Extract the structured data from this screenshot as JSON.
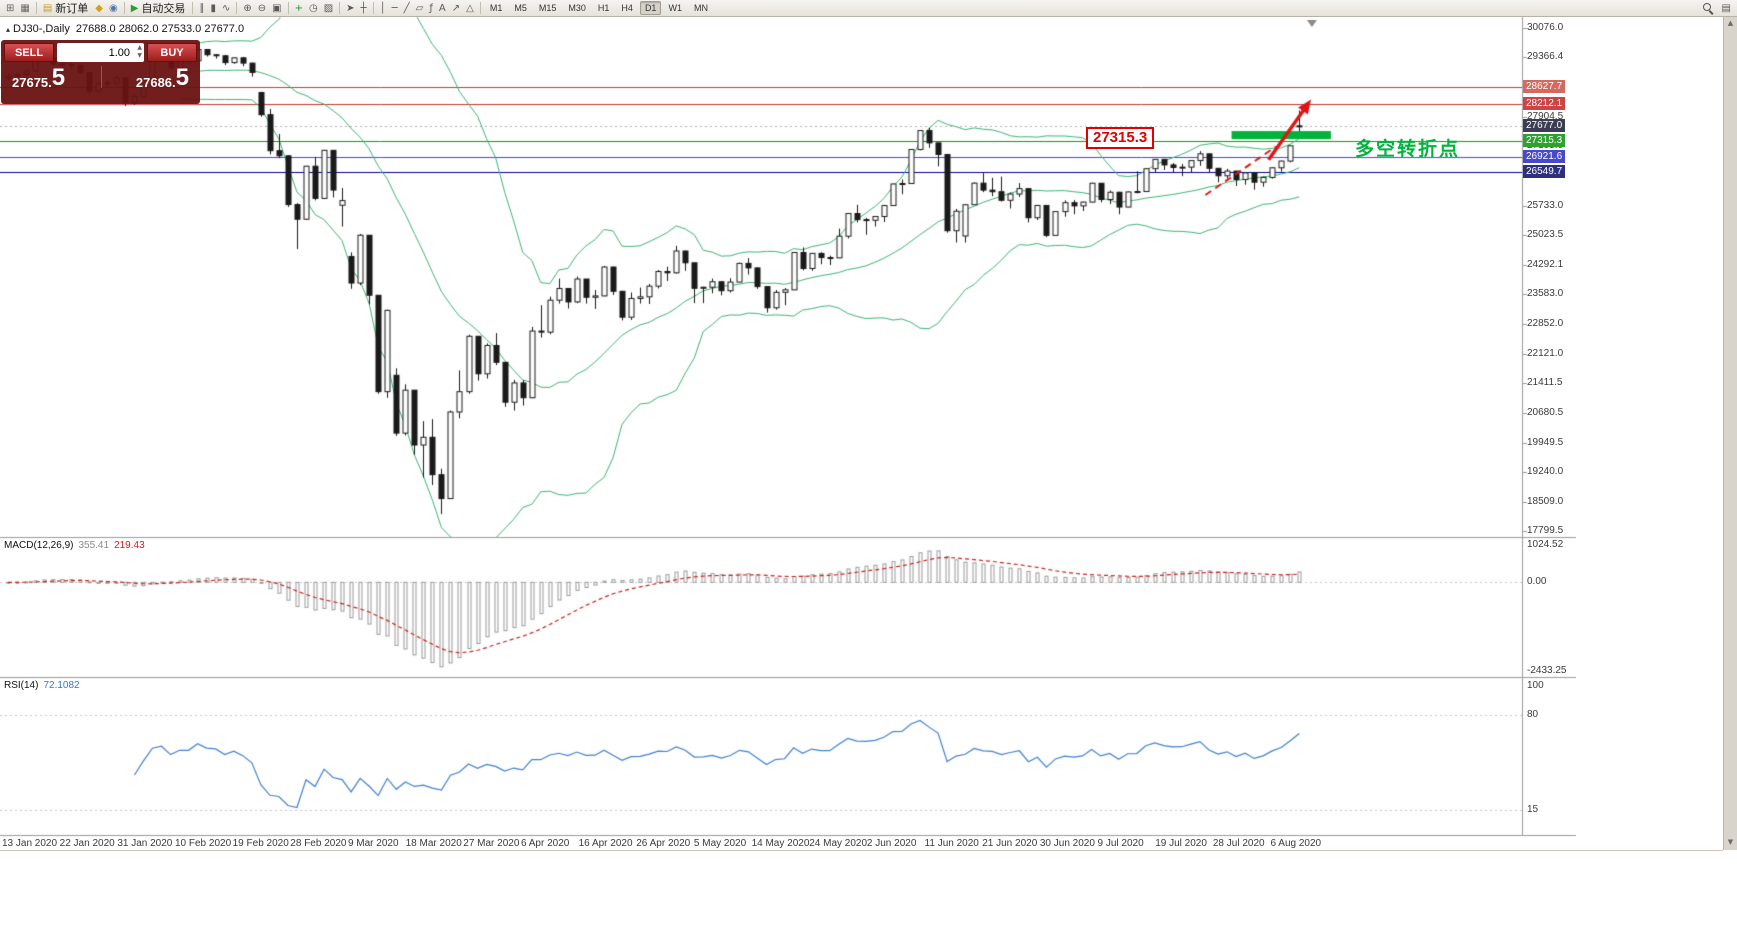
{
  "toolbar": {
    "items": [
      {
        "name": "new-chart-icon",
        "glyph": "⊞",
        "color": "#666666"
      },
      {
        "name": "profiles-icon",
        "glyph": "▦",
        "color": "#666666"
      },
      {
        "name": "sep"
      },
      {
        "name": "new-order-button",
        "glyph": "▤",
        "color": "#c89a2a",
        "label": "新订单"
      },
      {
        "name": "market-watch-icon",
        "glyph": "◆",
        "color": "#d4a017"
      },
      {
        "name": "navigator-icon",
        "glyph": "◉",
        "color": "#5577aa"
      },
      {
        "name": "sep"
      },
      {
        "name": "auto-trading-button",
        "glyph": "▶",
        "color": "#2e9e2e",
        "label": "自动交易"
      },
      {
        "name": "sep"
      },
      {
        "name": "bars-chart-icon",
        "glyph": "∥"
      },
      {
        "name": "candles-chart-icon",
        "glyph": "▮"
      },
      {
        "name": "line-chart-icon",
        "glyph": "∿"
      },
      {
        "name": "sep"
      },
      {
        "name": "zoom-in-icon",
        "glyph": "⊕"
      },
      {
        "name": "zoom-out-icon",
        "glyph": "⊖"
      },
      {
        "name": "tile-windows-icon",
        "glyph": "▣"
      },
      {
        "name": "sep"
      },
      {
        "name": "indicators-icon",
        "glyph": "+",
        "color": "#1e9e1e"
      },
      {
        "name": "period-icon",
        "glyph": "◷"
      },
      {
        "name": "templates-icon",
        "glyph": "▨"
      },
      {
        "name": "sep"
      },
      {
        "name": "cursor-icon",
        "glyph": "➤"
      },
      {
        "name": "crosshair-icon",
        "glyph": "┼"
      },
      {
        "name": "sep"
      },
      {
        "name": "vertical-line-icon",
        "glyph": "│"
      },
      {
        "name": "horizontal-line-icon",
        "glyph": "─"
      },
      {
        "name": "trendline-icon",
        "glyph": "╱"
      },
      {
        "name": "channel-icon",
        "glyph": "▱"
      },
      {
        "name": "fibonacci-icon",
        "glyph": "ƒ"
      },
      {
        "name": "text-icon",
        "glyph": "A"
      },
      {
        "name": "arrows-icon",
        "glyph": "↗"
      },
      {
        "name": "shapes-icon",
        "glyph": "△"
      },
      {
        "name": "sep"
      }
    ],
    "timeframes": [
      "M1",
      "M5",
      "M15",
      "M30",
      "H1",
      "H4",
      "D1",
      "W1",
      "MN"
    ],
    "active_timeframe": "D1",
    "items_right": [
      {
        "name": "symbol-search-icon",
        "type": "mag"
      },
      {
        "name": "community-icon",
        "glyph": "▤"
      }
    ]
  },
  "chart_header": {
    "collapse_glyph": "▴",
    "symbol_period": "DJ30-,Daily",
    "ohlc": "27688.0 28062.0 27533.0 27677.0"
  },
  "trade_panel": {
    "sell_label": "SELL",
    "buy_label": "BUY",
    "volume": "1.00",
    "spin_up": "▲",
    "spin_down": "▼",
    "sell_price_main": "27675.",
    "sell_price_big": "5",
    "buy_price_main": "27686.",
    "buy_price_big": "5"
  },
  "annotations": {
    "support_price": "27315.3",
    "turning_point": "多空转折点"
  },
  "macd_panel": {
    "name": "MACD(12,26,9)",
    "value_main": "355.41",
    "value_signal": "219.43",
    "axis": [
      "1024.52",
      "0.00",
      "-2433.25"
    ]
  },
  "rsi_panel": {
    "name": "RSI(14)",
    "value": "72.1082",
    "axis": [
      "100",
      "80",
      "15"
    ]
  },
  "scrollbar": {
    "up_glyph": "▲",
    "down_glyph": "▼"
  },
  "price_axis": {
    "ticks": [
      "30076.0",
      "29366.4",
      "27904.5",
      "27195.0",
      "25733.0",
      "25023.5",
      "24292.1",
      "23583.0",
      "22852.0",
      "22121.0",
      "21411.5",
      "20680.5",
      "19949.5",
      "19240.0",
      "18509.0",
      "17799.5"
    ],
    "tags": [
      {
        "text": "28627.7",
        "price": 28627.7,
        "bg": "#d46a5f"
      },
      {
        "text": "28212.1",
        "price": 28212.1,
        "bg": "#cc4444"
      },
      {
        "text": "27677.0",
        "price": 27677.0,
        "bg": "#3d3d52"
      },
      {
        "text": "27315.3",
        "price": 27315.3,
        "bg": "#2fa12f"
      },
      {
        "text": "26921.6",
        "price": 26921.6,
        "bg": "#4848cc"
      },
      {
        "text": "26549.7",
        "price": 26549.7,
        "bg": "#2f2f7f"
      }
    ]
  },
  "chart_data": {
    "type": "candlestick",
    "symbol": "DJ30-",
    "timeframe": "Daily",
    "price_range": [
      17653,
      30344.5
    ],
    "x_labels": [
      "13 Jan 2020",
      "22 Jan 2020",
      "31 Jan 2020",
      "10 Feb 2020",
      "19 Feb 2020",
      "28 Feb 2020",
      "9 Mar 2020",
      "18 Mar 2020",
      "27 Mar 2020",
      "6 Apr 2020",
      "16 Apr 2020",
      "26 Apr 2020",
      "5 May 2020",
      "14 May 2020",
      "24 May 2020",
      "2 Jun 2020",
      "11 Jun 2020",
      "21 Jun 2020",
      "30 Jun 2020",
      "9 Jul 2020",
      "19 Jul 2020",
      "28 Jul 2020",
      "6 Aug 2020"
    ],
    "hlines": [
      {
        "price": 28627.7,
        "color": "#cc3333",
        "style": "solid"
      },
      {
        "price": 28212.1,
        "color": "#cc3333",
        "style": "solid"
      },
      {
        "price": 27677.0,
        "color": "#b0b0b0",
        "style": "dot"
      },
      {
        "price": 27315.3,
        "color": "#00a000",
        "style": "solid"
      },
      {
        "price": 26921.6,
        "color": "#4444dd",
        "style": "solid"
      },
      {
        "price": 26549.7,
        "color": "#000099",
        "style": "solid"
      }
    ],
    "bollinger": {
      "period": 20,
      "deviation": 2,
      "color": "#3cb371"
    },
    "macd": {
      "fast": 12,
      "slow": 26,
      "signal_period": 9,
      "axis_max": 1024.52,
      "axis_min": -2433.25,
      "hist_color": "#9a9a9a",
      "signal_color": "#d02020"
    },
    "rsi": {
      "period": 14,
      "levels": [
        80,
        15
      ],
      "color": "#4080cf"
    },
    "drawings": {
      "green_zone": {
        "from_index": 135.5,
        "to_index": 146.5,
        "price": 27560,
        "thickness": 8,
        "color": "#00b33c"
      },
      "trend_dash": {
        "from_index": 132.6,
        "from_price": 26000,
        "to_index": 140.4,
        "to_price": 27180,
        "color": "#e01515"
      },
      "arrow": {
        "from_index": 139.6,
        "from_price": 26860,
        "to_index": 144.3,
        "to_price": 28330,
        "color": "#e01515"
      },
      "shift_marker_index": 144.4
    },
    "ohlc": [
      [
        28850,
        28960,
        28800,
        28907
      ],
      [
        28907,
        28980,
        28850,
        28939
      ],
      [
        28939,
        29060,
        28900,
        29030
      ],
      [
        29030,
        29320,
        29000,
        29297
      ],
      [
        29297,
        29380,
        29250,
        29348
      ],
      [
        29348,
        29360,
        29130,
        29196
      ],
      [
        29196,
        29250,
        29100,
        29186
      ],
      [
        29186,
        29230,
        29060,
        29160
      ],
      [
        29160,
        29190,
        28950,
        28989
      ],
      [
        28989,
        29000,
        28440,
        28535
      ],
      [
        28535,
        28760,
        28500,
        28722
      ],
      [
        28722,
        28800,
        28630,
        28734
      ],
      [
        28734,
        28920,
        28700,
        28859
      ],
      [
        28859,
        28870,
        28170,
        28256
      ],
      [
        28256,
        28470,
        28200,
        28399
      ],
      [
        28399,
        28850,
        28380,
        28807
      ],
      [
        28807,
        29310,
        28800,
        29290
      ],
      [
        29290,
        29410,
        29230,
        29379
      ],
      [
        29379,
        29390,
        29060,
        29102
      ],
      [
        29102,
        29300,
        29080,
        29276
      ],
      [
        29276,
        29320,
        29200,
        29276
      ],
      [
        29276,
        29570,
        29260,
        29551
      ],
      [
        29551,
        29560,
        29380,
        29423
      ],
      [
        29423,
        29440,
        29330,
        29398
      ],
      [
        29398,
        29420,
        29170,
        29232
      ],
      [
        29232,
        29360,
        29200,
        29348
      ],
      [
        29348,
        29370,
        29140,
        29219
      ],
      [
        29219,
        29230,
        28890,
        28992
      ],
      [
        28500,
        28520,
        27910,
        27960
      ],
      [
        27960,
        28100,
        26990,
        27081
      ],
      [
        27081,
        27490,
        26900,
        26957
      ],
      [
        26957,
        26970,
        25710,
        25766
      ],
      [
        25766,
        25800,
        24680,
        25409
      ],
      [
        25409,
        26710,
        25390,
        26703
      ],
      [
        26703,
        26930,
        25870,
        25917
      ],
      [
        25917,
        27100,
        25900,
        27090
      ],
      [
        27090,
        27100,
        25940,
        26121
      ],
      [
        25750,
        26170,
        25230,
        25864
      ],
      [
        24500,
        24600,
        23710,
        23851
      ],
      [
        23851,
        25050,
        23800,
        25018
      ],
      [
        25018,
        25020,
        23330,
        23553
      ],
      [
        23553,
        23560,
        21150,
        21200
      ],
      [
        21200,
        23200,
        21050,
        23185
      ],
      [
        21600,
        21770,
        20120,
        20188
      ],
      [
        20188,
        21380,
        20130,
        21237
      ],
      [
        21237,
        21240,
        19660,
        19898
      ],
      [
        19898,
        20480,
        19100,
        20087
      ],
      [
        20087,
        20530,
        18920,
        19173
      ],
      [
        19173,
        19320,
        18210,
        18591
      ],
      [
        18591,
        20740,
        18580,
        20704
      ],
      [
        20704,
        21720,
        20550,
        21200
      ],
      [
        21200,
        22590,
        21150,
        22552
      ],
      [
        22552,
        22560,
        21470,
        21636
      ],
      [
        21636,
        22380,
        21520,
        22327
      ],
      [
        22327,
        22630,
        21850,
        21917
      ],
      [
        21917,
        21920,
        20830,
        20943
      ],
      [
        20943,
        21490,
        20740,
        21413
      ],
      [
        21413,
        21480,
        20860,
        21052
      ],
      [
        21052,
        22780,
        21040,
        22679
      ],
      [
        22679,
        23310,
        22520,
        22653
      ],
      [
        22653,
        23520,
        22600,
        23433
      ],
      [
        23433,
        23960,
        23350,
        23719
      ],
      [
        23719,
        23730,
        23230,
        23390
      ],
      [
        23390,
        24010,
        23360,
        23949
      ],
      [
        23949,
        23950,
        23350,
        23504
      ],
      [
        23504,
        23680,
        23220,
        23537
      ],
      [
        23537,
        24270,
        23530,
        24242
      ],
      [
        24242,
        24250,
        23560,
        23650
      ],
      [
        23650,
        23660,
        22940,
        23018
      ],
      [
        23018,
        23620,
        22950,
        23475
      ],
      [
        23475,
        23740,
        23350,
        23515
      ],
      [
        23515,
        23830,
        23340,
        23775
      ],
      [
        23775,
        24170,
        23720,
        24133
      ],
      [
        24133,
        24250,
        23900,
        24101
      ],
      [
        24101,
        24760,
        24080,
        24633
      ],
      [
        24633,
        24640,
        24150,
        24345
      ],
      [
        24345,
        24350,
        23360,
        23723
      ],
      [
        23723,
        23760,
        23360,
        23749
      ],
      [
        23749,
        23960,
        23600,
        23883
      ],
      [
        23883,
        23890,
        23550,
        23664
      ],
      [
        23664,
        23970,
        23620,
        23875
      ],
      [
        23875,
        24350,
        23870,
        24331
      ],
      [
        24331,
        24460,
        24060,
        24221
      ],
      [
        24221,
        24230,
        23710,
        23764
      ],
      [
        23764,
        23770,
        23130,
        23247
      ],
      [
        23247,
        23680,
        23200,
        23625
      ],
      [
        23625,
        23730,
        23310,
        23685
      ],
      [
        23685,
        24600,
        23680,
        24597
      ],
      [
        24597,
        24720,
        24160,
        24206
      ],
      [
        24206,
        24580,
        24150,
        24575
      ],
      [
        24575,
        24600,
        24310,
        24474
      ],
      [
        24474,
        24520,
        24290,
        24465
      ],
      [
        24465,
        25180,
        24460,
        24995
      ],
      [
        24995,
        25560,
        24940,
        25548
      ],
      [
        25548,
        25760,
        25330,
        25400
      ],
      [
        25400,
        25440,
        25030,
        25383
      ],
      [
        25383,
        25480,
        25230,
        25475
      ],
      [
        25475,
        25760,
        25340,
        25742
      ],
      [
        25742,
        26280,
        25740,
        26269
      ],
      [
        26269,
        26380,
        26020,
        26281
      ],
      [
        26281,
        27120,
        26280,
        27110
      ],
      [
        27110,
        27580,
        27090,
        27572
      ],
      [
        27572,
        27640,
        27150,
        27272
      ],
      [
        27272,
        27280,
        26700,
        26989
      ],
      [
        26989,
        26990,
        25080,
        25128
      ],
      [
        25128,
        25660,
        24840,
        25605
      ],
      [
        25000,
        25780,
        24840,
        25763
      ],
      [
        25763,
        26310,
        25760,
        26289
      ],
      [
        26289,
        26560,
        26070,
        26119
      ],
      [
        26119,
        26420,
        25970,
        26080
      ],
      [
        26080,
        26450,
        25840,
        25871
      ],
      [
        25871,
        26060,
        25670,
        26024
      ],
      [
        26024,
        26290,
        25950,
        26156
      ],
      [
        26156,
        26160,
        25330,
        25445
      ],
      [
        25445,
        25760,
        25390,
        25745
      ],
      [
        25745,
        25750,
        24970,
        25015
      ],
      [
        25015,
        25600,
        25010,
        25595
      ],
      [
        25595,
        25870,
        25470,
        25812
      ],
      [
        25812,
        25880,
        25530,
        25734
      ],
      [
        25734,
        25840,
        25610,
        25827
      ],
      [
        25827,
        26300,
        25820,
        26287
      ],
      [
        26287,
        26290,
        25820,
        25890
      ],
      [
        25890,
        26110,
        25780,
        26067
      ],
      [
        26067,
        26080,
        25530,
        25706
      ],
      [
        25706,
        26090,
        25700,
        26075
      ],
      [
        26075,
        26580,
        26040,
        26085
      ],
      [
        26085,
        26650,
        26080,
        26642
      ],
      [
        26642,
        26880,
        26550,
        26870
      ],
      [
        26870,
        26880,
        26610,
        26734
      ],
      [
        26734,
        26780,
        26550,
        26671
      ],
      [
        26671,
        26760,
        26460,
        26680
      ],
      [
        26680,
        26850,
        26560,
        26840
      ],
      [
        26840,
        27070,
        26710,
        27005
      ],
      [
        27005,
        27010,
        26540,
        26652
      ],
      [
        26652,
        26660,
        26310,
        26469
      ],
      [
        26469,
        26640,
        26400,
        26584
      ],
      [
        26584,
        26590,
        26220,
        26379
      ],
      [
        26379,
        26560,
        26250,
        26539
      ],
      [
        26539,
        26540,
        26130,
        26313
      ],
      [
        26313,
        26450,
        26200,
        26428
      ],
      [
        26428,
        26680,
        26400,
        26664
      ],
      [
        26664,
        26840,
        26570,
        26828
      ],
      [
        26828,
        27210,
        26800,
        27201
      ],
      [
        27688,
        28062,
        27533,
        27677
      ]
    ]
  }
}
